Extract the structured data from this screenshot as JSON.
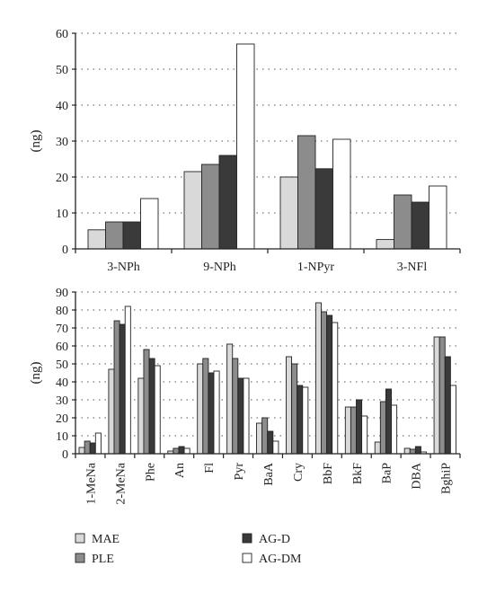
{
  "colors": {
    "MAE": "#d9d9d9",
    "PLE": "#8c8c8c",
    "AG-D": "#3a3a3a",
    "AG-DM": "#ffffff",
    "stroke": "#222222"
  },
  "chart_data": [
    {
      "type": "bar",
      "categories": [
        "3-NPh",
        "9-NPh",
        "1-NPyr",
        "3-NFl"
      ],
      "series": [
        {
          "name": "MAE",
          "values": [
            5.3,
            21.5,
            20,
            2.6
          ]
        },
        {
          "name": "PLE",
          "values": [
            7.5,
            23.5,
            31.5,
            15
          ]
        },
        {
          "name": "AG-D",
          "values": [
            7.5,
            26,
            22.3,
            13
          ]
        },
        {
          "name": "AG-DM",
          "values": [
            14,
            57,
            30.5,
            17.5
          ]
        }
      ],
      "ylabel": "(ng)",
      "ylim": [
        0,
        60
      ],
      "yticks": [
        0,
        10,
        20,
        30,
        40,
        50,
        60
      ],
      "grid": "dotted horizontal"
    },
    {
      "type": "bar",
      "categories": [
        "1-MeNa",
        "2-MeNa",
        "Phe",
        "An",
        "Fl",
        "Pyr",
        "BaA",
        "Cry",
        "BbF",
        "BkF",
        "BaP",
        "DBA",
        "BghiP"
      ],
      "series": [
        {
          "name": "MAE",
          "values": [
            3.5,
            47,
            42,
            1.5,
            50,
            61,
            17,
            54,
            84,
            26,
            6.5,
            3,
            65
          ]
        },
        {
          "name": "PLE",
          "values": [
            7,
            74,
            58,
            3,
            53,
            53,
            20,
            50,
            79,
            26,
            29,
            2.5,
            65
          ]
        },
        {
          "name": "AG-D",
          "values": [
            6,
            72,
            53,
            4,
            45,
            42,
            12.5,
            38,
            77,
            30,
            36,
            4,
            54
          ]
        },
        {
          "name": "AG-DM",
          "values": [
            11.5,
            82,
            49,
            3,
            46,
            42,
            7,
            37,
            73,
            21,
            27,
            1,
            38
          ]
        }
      ],
      "ylabel": "(ng)",
      "ylim": [
        0,
        90
      ],
      "yticks": [
        0,
        10,
        20,
        30,
        40,
        50,
        60,
        70,
        80,
        90
      ],
      "grid": "dotted horizontal"
    }
  ],
  "legend": [
    {
      "name": "MAE"
    },
    {
      "name": "AG-D"
    },
    {
      "name": "PLE"
    },
    {
      "name": "AG-DM"
    }
  ]
}
